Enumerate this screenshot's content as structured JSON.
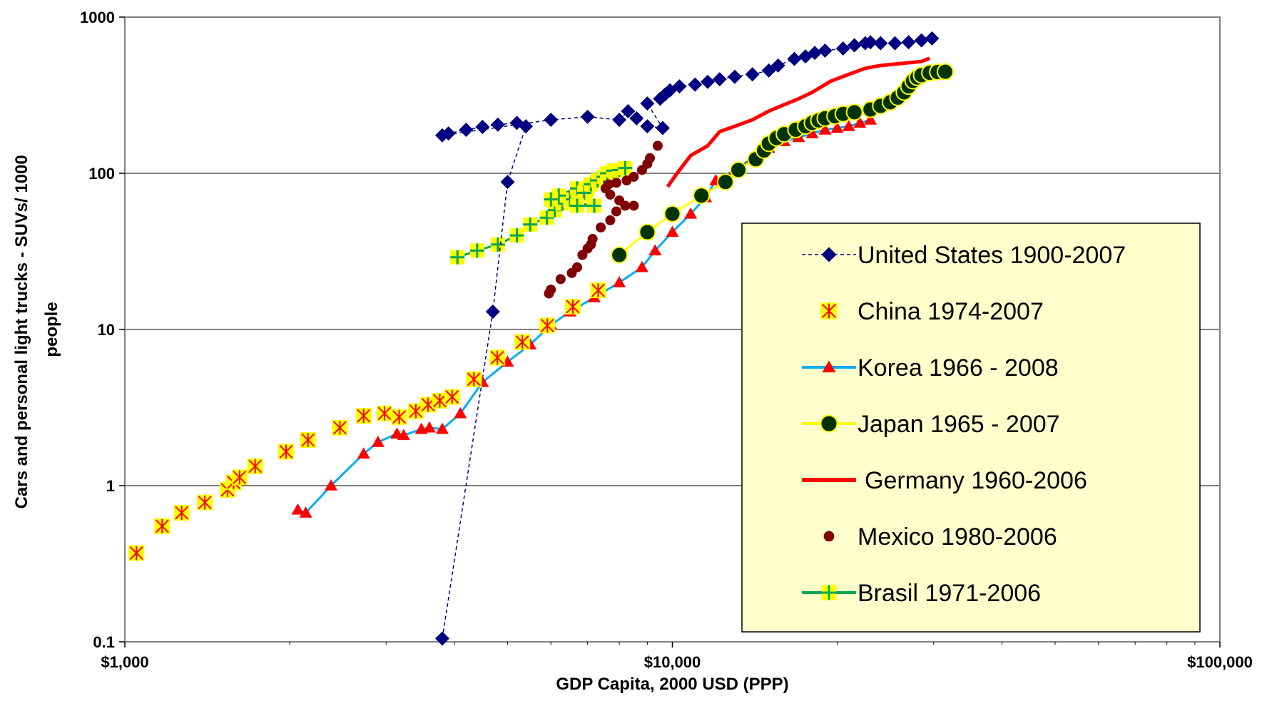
{
  "chart_data": {
    "type": "scatter",
    "title": "",
    "xlabel": "GDP Capita, 2000 USD (PPP)",
    "ylabel": [
      "Cars and personal light trucks - SUVs/ 1000",
      "people"
    ],
    "x_scale": "log",
    "y_scale": "log",
    "xlim": [
      1000,
      100000
    ],
    "ylim": [
      0.1,
      1000
    ],
    "x_ticks": [
      {
        "value": 1000,
        "label": "$1,000"
      },
      {
        "value": 10000,
        "label": "$10,000"
      },
      {
        "value": 100000,
        "label": "$100,000"
      }
    ],
    "y_ticks": [
      {
        "value": 0.1,
        "label": "0.1"
      },
      {
        "value": 1,
        "label": "1"
      },
      {
        "value": 10,
        "label": "10"
      },
      {
        "value": 100,
        "label": "100"
      },
      {
        "value": 1000,
        "label": "1000"
      }
    ],
    "grid": "horizontal major gridlines",
    "legend_position": "right, inside plot area",
    "legend_background": "#ffffcc",
    "series": [
      {
        "name": "United States 1900-2007",
        "marker": "diamond",
        "line": "dashed",
        "color": "#000080",
        "points": [
          [
            3800,
            0.105
          ],
          [
            4700,
            13
          ],
          [
            5000,
            88
          ],
          [
            5400,
            200
          ],
          [
            5200,
            210
          ],
          [
            4800,
            205
          ],
          [
            4500,
            198
          ],
          [
            4200,
            190
          ],
          [
            3900,
            180
          ],
          [
            3800,
            175
          ],
          [
            6000,
            220
          ],
          [
            7000,
            230
          ],
          [
            8000,
            220
          ],
          [
            8300,
            250
          ],
          [
            8600,
            225
          ],
          [
            9000,
            200
          ],
          [
            9600,
            195
          ],
          [
            9000,
            280
          ],
          [
            9500,
            300
          ],
          [
            9700,
            320
          ],
          [
            9900,
            340
          ],
          [
            10300,
            360
          ],
          [
            11000,
            370
          ],
          [
            11600,
            385
          ],
          [
            12200,
            400
          ],
          [
            13000,
            415
          ],
          [
            14000,
            430
          ],
          [
            15000,
            455
          ],
          [
            15600,
            490
          ],
          [
            16700,
            540
          ],
          [
            17500,
            560
          ],
          [
            18200,
            590
          ],
          [
            19000,
            610
          ],
          [
            20500,
            630
          ],
          [
            21500,
            660
          ],
          [
            22500,
            680
          ],
          [
            23000,
            690
          ],
          [
            24000,
            680
          ],
          [
            25500,
            680
          ],
          [
            27000,
            690
          ],
          [
            28500,
            710
          ],
          [
            29800,
            730
          ]
        ]
      },
      {
        "name": "China 1974-2007",
        "marker": "x-square",
        "line": "none",
        "color": "#ff0000",
        "fill": "#ffff00",
        "points": [
          [
            1050,
            0.37
          ],
          [
            1170,
            0.55
          ],
          [
            1270,
            0.67
          ],
          [
            1400,
            0.78
          ],
          [
            1540,
            0.94
          ],
          [
            1580,
            1.05
          ],
          [
            1620,
            1.13
          ],
          [
            1730,
            1.33
          ],
          [
            1970,
            1.65
          ],
          [
            2160,
            1.96
          ],
          [
            2470,
            2.35
          ],
          [
            2730,
            2.8
          ],
          [
            2980,
            2.9
          ],
          [
            3170,
            2.75
          ],
          [
            3400,
            3.0
          ],
          [
            3580,
            3.3
          ],
          [
            3760,
            3.5
          ],
          [
            3960,
            3.7
          ],
          [
            4340,
            4.8
          ],
          [
            4790,
            6.6
          ],
          [
            5320,
            8.3
          ],
          [
            5910,
            10.6
          ],
          [
            6580,
            14.0
          ],
          [
            7320,
            17.8
          ]
        ]
      },
      {
        "name": "Korea 1966 - 2008",
        "marker": "triangle",
        "line": "solid",
        "color": "#00aeef",
        "marker_color": "#ff0000",
        "points": [
          [
            2070,
            0.7
          ],
          [
            2140,
            0.67
          ],
          [
            2380,
            1.0
          ],
          [
            2730,
            1.6
          ],
          [
            2900,
            1.9
          ],
          [
            3140,
            2.15
          ],
          [
            3230,
            2.1
          ],
          [
            3480,
            2.3
          ],
          [
            3600,
            2.35
          ],
          [
            3800,
            2.3
          ],
          [
            4100,
            2.9
          ],
          [
            4500,
            4.6
          ],
          [
            5000,
            6.2
          ],
          [
            5500,
            8.0
          ],
          [
            6000,
            10.7
          ],
          [
            6500,
            13.0
          ],
          [
            7200,
            16.0
          ],
          [
            8000,
            20.0
          ],
          [
            8800,
            25.0
          ],
          [
            9300,
            32.0
          ],
          [
            10000,
            42.0
          ],
          [
            10800,
            55.0
          ],
          [
            11500,
            70.0
          ],
          [
            12000,
            90.0
          ],
          [
            13000,
            105
          ],
          [
            14000,
            125
          ],
          [
            15000,
            145
          ],
          [
            16000,
            160
          ],
          [
            17000,
            170
          ],
          [
            18000,
            180
          ],
          [
            19000,
            190
          ],
          [
            20000,
            195
          ],
          [
            21000,
            200
          ],
          [
            22000,
            210
          ],
          [
            23000,
            220
          ]
        ]
      },
      {
        "name": "Japan 1965 - 2007",
        "marker": "circle",
        "line": "solid",
        "color": "#ffff00",
        "marker_color": "#003300",
        "points": [
          [
            8000,
            30
          ],
          [
            9000,
            42
          ],
          [
            10000,
            55
          ],
          [
            11300,
            72
          ],
          [
            12500,
            88
          ],
          [
            13200,
            105
          ],
          [
            14200,
            123
          ],
          [
            14700,
            140
          ],
          [
            15000,
            155
          ],
          [
            15500,
            168
          ],
          [
            16000,
            178
          ],
          [
            16800,
            190
          ],
          [
            17500,
            200
          ],
          [
            18000,
            210
          ],
          [
            18500,
            218
          ],
          [
            19000,
            225
          ],
          [
            19800,
            232
          ],
          [
            20500,
            240
          ],
          [
            21500,
            246
          ],
          [
            23000,
            256
          ],
          [
            24000,
            270
          ],
          [
            25000,
            285
          ],
          [
            25800,
            305
          ],
          [
            26500,
            330
          ],
          [
            27000,
            360
          ],
          [
            27500,
            390
          ],
          [
            28000,
            410
          ],
          [
            28500,
            425
          ],
          [
            29500,
            440
          ],
          [
            30500,
            445
          ],
          [
            31500,
            447
          ]
        ]
      },
      {
        "name": "Germany 1960-2006",
        "marker": "none",
        "line": "solid",
        "color": "#ff0000",
        "points": [
          [
            9800,
            82
          ],
          [
            10200,
            100
          ],
          [
            10800,
            130
          ],
          [
            11600,
            150
          ],
          [
            12200,
            185
          ],
          [
            13000,
            200
          ],
          [
            14000,
            220
          ],
          [
            15000,
            250
          ],
          [
            16000,
            275
          ],
          [
            17000,
            300
          ],
          [
            18000,
            330
          ],
          [
            19500,
            390
          ],
          [
            21000,
            430
          ],
          [
            22500,
            470
          ],
          [
            24000,
            490
          ],
          [
            25500,
            500
          ],
          [
            27000,
            510
          ],
          [
            28500,
            520
          ],
          [
            29500,
            545
          ]
        ]
      },
      {
        "name": "Mexico 1980-2006",
        "marker": "circle",
        "line": "none",
        "color": "#800000",
        "points": [
          [
            5950,
            17
          ],
          [
            6000,
            18
          ],
          [
            6250,
            21
          ],
          [
            6550,
            23
          ],
          [
            6700,
            25
          ],
          [
            6850,
            30
          ],
          [
            7000,
            33
          ],
          [
            7100,
            35
          ],
          [
            7150,
            38
          ],
          [
            7400,
            45
          ],
          [
            7700,
            50
          ],
          [
            7900,
            57
          ],
          [
            8200,
            62
          ],
          [
            8500,
            62
          ],
          [
            8000,
            67
          ],
          [
            7700,
            73
          ],
          [
            7550,
            80
          ],
          [
            7650,
            85
          ],
          [
            7900,
            87
          ],
          [
            8250,
            90
          ],
          [
            8500,
            95
          ],
          [
            8800,
            105
          ],
          [
            9000,
            115
          ],
          [
            9100,
            125
          ],
          [
            9400,
            150
          ]
        ]
      },
      {
        "name": "Brasil 1971-2006",
        "marker": "plus-square",
        "line": "solid",
        "color": "#00a651",
        "fill": "#ffff00",
        "points": [
          [
            4050,
            29
          ],
          [
            4400,
            32
          ],
          [
            4800,
            35
          ],
          [
            5200,
            40
          ],
          [
            5500,
            47
          ],
          [
            5900,
            52
          ],
          [
            6100,
            58
          ],
          [
            6300,
            64
          ],
          [
            6500,
            68
          ],
          [
            6800,
            73
          ],
          [
            7000,
            78
          ],
          [
            6700,
            80
          ],
          [
            6900,
            75
          ],
          [
            7100,
            85
          ],
          [
            7300,
            90
          ],
          [
            7500,
            95
          ],
          [
            7600,
            100
          ],
          [
            7800,
            104
          ],
          [
            8000,
            105
          ],
          [
            8200,
            108
          ],
          [
            6200,
            72
          ],
          [
            6000,
            68
          ],
          [
            7200,
            62
          ],
          [
            6700,
            62
          ]
        ]
      }
    ]
  }
}
